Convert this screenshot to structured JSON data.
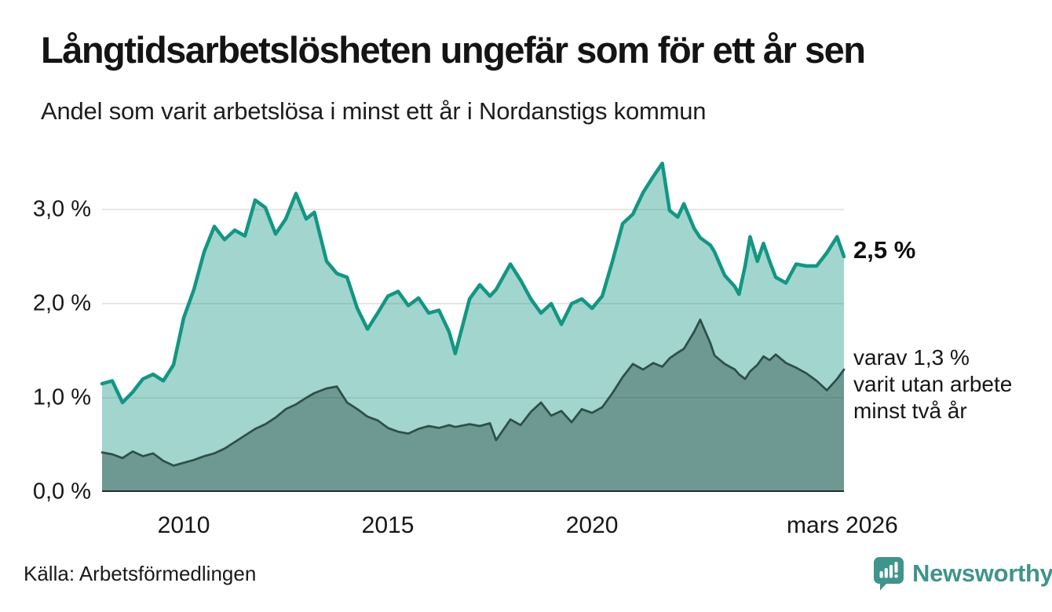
{
  "header": {
    "title": "Långtidsarbetslösheten ungefär som för ett år sen",
    "subtitle": "Andel som varit arbetslösa i minst ett år i Nordanstigs kommun"
  },
  "chart_data": {
    "type": "area",
    "title": "Andel som varit arbetslösa i minst ett år i Nordanstigs kommun",
    "x_unit": "decimal_year",
    "xlim": [
      2008.0,
      2026.17
    ],
    "ylim": [
      0,
      3.6
    ],
    "grid": "horizontal",
    "legend_position": "none",
    "x": [
      2008.0,
      2008.25,
      2008.5,
      2008.75,
      2009.0,
      2009.25,
      2009.5,
      2009.75,
      2010.0,
      2010.25,
      2010.5,
      2010.75,
      2011.0,
      2011.25,
      2011.5,
      2011.75,
      2012.0,
      2012.25,
      2012.5,
      2012.75,
      2013.0,
      2013.2,
      2013.5,
      2013.75,
      2014.0,
      2014.25,
      2014.5,
      2014.75,
      2015.0,
      2015.25,
      2015.5,
      2015.75,
      2016.0,
      2016.25,
      2016.5,
      2016.65,
      2017.0,
      2017.25,
      2017.5,
      2017.65,
      2018.0,
      2018.25,
      2018.5,
      2018.75,
      2019.0,
      2019.25,
      2019.5,
      2019.75,
      2020.0,
      2020.25,
      2020.5,
      2020.75,
      2021.0,
      2021.25,
      2021.5,
      2021.72,
      2021.9,
      2022.1,
      2022.25,
      2022.5,
      2022.65,
      2022.9,
      2023.0,
      2023.25,
      2023.5,
      2023.6,
      2023.75,
      2023.87,
      2024.05,
      2024.2,
      2024.35,
      2024.5,
      2024.75,
      2025.0,
      2025.25,
      2025.5,
      2025.75,
      2026.0,
      2026.17
    ],
    "series": [
      {
        "name": "Andel arbetslösa minst ett år",
        "latest_value_pct": 2.5,
        "line_color": "#139684",
        "fill_color": "rgba(19,150,132,0.40)",
        "values": [
          1.15,
          1.18,
          0.95,
          1.06,
          1.2,
          1.25,
          1.18,
          1.35,
          1.85,
          2.15,
          2.55,
          2.82,
          2.68,
          2.78,
          2.72,
          3.1,
          3.02,
          2.74,
          2.9,
          3.17,
          2.9,
          2.97,
          2.45,
          2.32,
          2.28,
          1.95,
          1.73,
          1.9,
          2.08,
          2.13,
          1.98,
          2.06,
          1.9,
          1.93,
          1.7,
          1.47,
          2.05,
          2.2,
          2.08,
          2.15,
          2.42,
          2.25,
          2.05,
          1.9,
          2.0,
          1.78,
          2.0,
          2.05,
          1.95,
          2.08,
          2.45,
          2.85,
          2.95,
          3.18,
          3.35,
          3.49,
          2.99,
          2.92,
          3.06,
          2.8,
          2.7,
          2.62,
          2.55,
          2.3,
          2.18,
          2.1,
          2.4,
          2.71,
          2.45,
          2.64,
          2.45,
          2.28,
          2.22,
          2.42,
          2.4,
          2.4,
          2.54,
          2.71,
          2.5
        ]
      },
      {
        "name": "Andel arbetslösa minst två år",
        "latest_value_pct": 1.3,
        "line_color": "#2e4f49",
        "fill_color": "rgba(46,79,73,0.45)",
        "values": [
          0.42,
          0.4,
          0.36,
          0.43,
          0.38,
          0.41,
          0.33,
          0.28,
          0.31,
          0.34,
          0.38,
          0.41,
          0.46,
          0.53,
          0.6,
          0.67,
          0.72,
          0.79,
          0.88,
          0.93,
          1.0,
          1.05,
          1.1,
          1.12,
          0.95,
          0.88,
          0.8,
          0.76,
          0.68,
          0.64,
          0.62,
          0.67,
          0.7,
          0.68,
          0.71,
          0.69,
          0.72,
          0.7,
          0.73,
          0.55,
          0.77,
          0.71,
          0.85,
          0.95,
          0.81,
          0.86,
          0.74,
          0.88,
          0.84,
          0.9,
          1.05,
          1.22,
          1.36,
          1.3,
          1.37,
          1.33,
          1.42,
          1.48,
          1.52,
          1.7,
          1.83,
          1.58,
          1.45,
          1.36,
          1.3,
          1.25,
          1.2,
          1.28,
          1.35,
          1.44,
          1.4,
          1.46,
          1.37,
          1.32,
          1.26,
          1.18,
          1.08,
          1.2,
          1.3
        ]
      }
    ],
    "yticks": [
      {
        "value": 0,
        "label": "0,0 %"
      },
      {
        "value": 1,
        "label": "1,0 %"
      },
      {
        "value": 2,
        "label": "2,0 %"
      },
      {
        "value": 3,
        "label": "3,0 %"
      }
    ],
    "xticks": [
      {
        "value": 2010,
        "label": "2010"
      },
      {
        "value": 2015,
        "label": "2015"
      },
      {
        "value": 2020,
        "label": "2020"
      },
      {
        "value": 2026.13,
        "label": "mars 2026"
      }
    ]
  },
  "annotations": {
    "latest_total": "2,5 %",
    "latest_two_year_lines": [
      "varav 1,3 %",
      "varit utan arbete",
      "minst två år"
    ]
  },
  "footer": {
    "source": "Källa: Arbetsförmedlingen",
    "brand": "Newsworthy"
  },
  "colors": {
    "accent_teal": "#139684",
    "dark_series_line": "#2e4f49",
    "light_fill_rendered": "#9fd4cc",
    "dark_fill_rendered": "#6f9d96",
    "brand_teal": "#3f948b",
    "grid": "#dedede",
    "axis": "#2b2b2b",
    "text": "#161616"
  }
}
